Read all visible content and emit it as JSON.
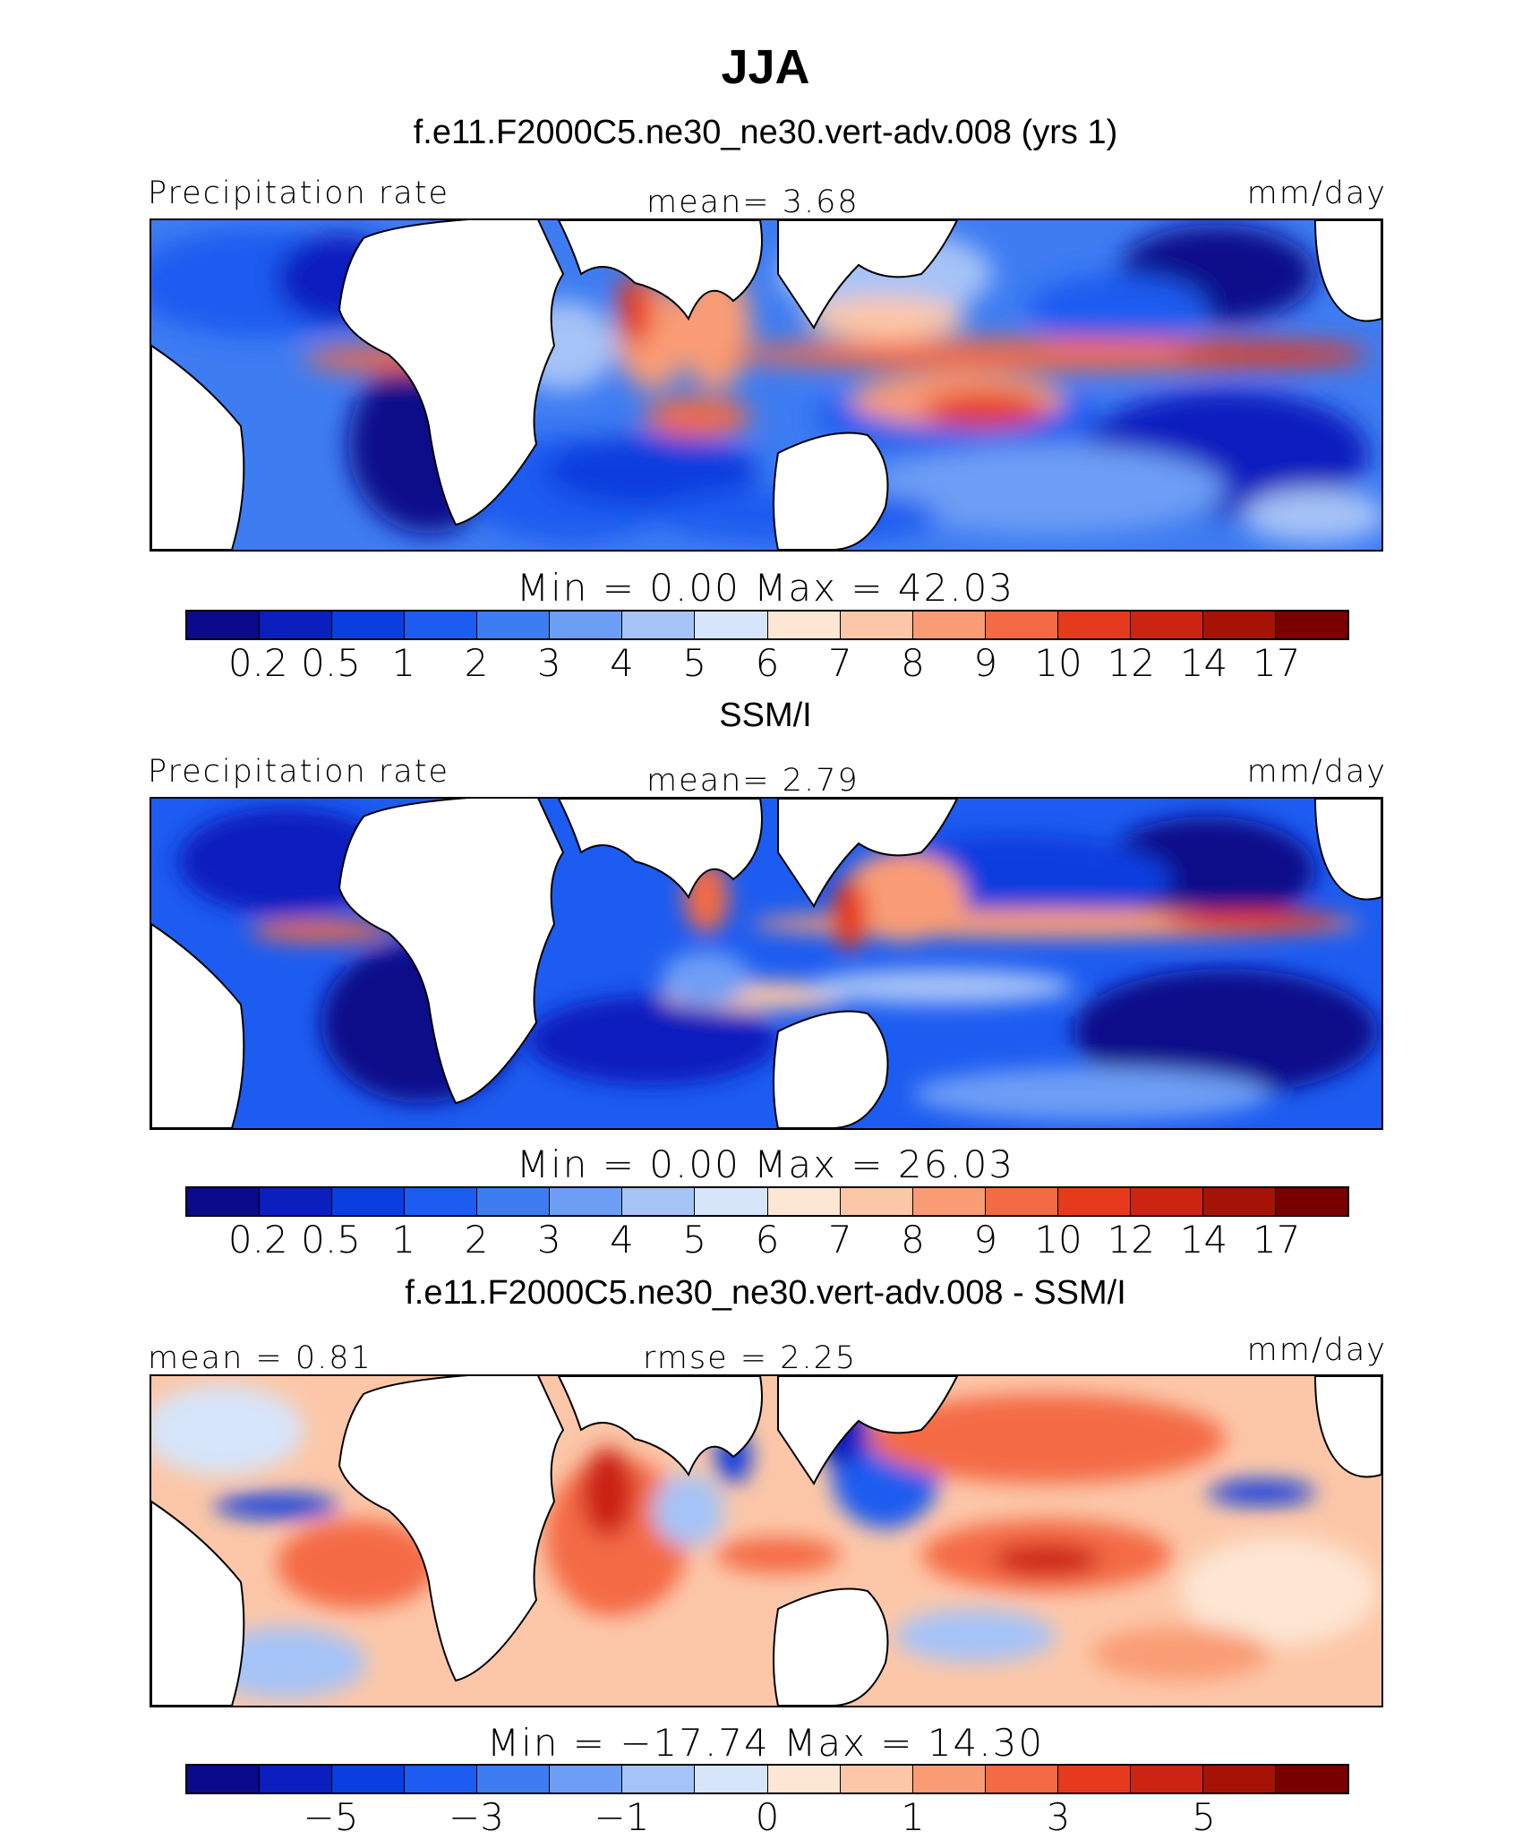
{
  "title": "JJA",
  "palette": [
    "#0a0a8a",
    "#0a1fbe",
    "#0a3ede",
    "#1d5cf0",
    "#3e7cf2",
    "#6d9ef5",
    "#a6c3f7",
    "#d6e5fa",
    "#fde6d3",
    "#fcc7a8",
    "#f99c75",
    "#f46a45",
    "#e63a1c",
    "#cc2412",
    "#a61306",
    "#7a0000"
  ],
  "panels": [
    {
      "subtitle": "f.e11.F2000C5.ne30_ne30.vert-adv.008 (yrs 1)",
      "header_left": "Precipitation rate",
      "header_center": "mean=    3.68",
      "header_right": "mm/day",
      "minmax": "Min  =     0.00  Max  =    42.03",
      "colorbar_ticks": [
        "0.2",
        "0.5",
        "1",
        "2",
        "3",
        "4",
        "5",
        "6",
        "7",
        "8",
        "9",
        "10",
        "12",
        "14",
        "17"
      ]
    },
    {
      "subtitle": "SSM/I",
      "header_left": "Precipitation rate",
      "header_center": "mean=    2.79",
      "header_right": "mm/day",
      "minmax": "Min  =     0.00  Max  =    26.03",
      "colorbar_ticks": [
        "0.2",
        "0.5",
        "1",
        "2",
        "3",
        "4",
        "5",
        "6",
        "7",
        "8",
        "9",
        "10",
        "12",
        "14",
        "17"
      ]
    },
    {
      "subtitle": "f.e11.F2000C5.ne30_ne30.vert-adv.008 - SSM/I",
      "header_left": "mean =    0.81",
      "header_center": "rmse =    2.25",
      "header_right": "mm/day",
      "minmax": "Min  = −17.74  Max  =    14.30",
      "colorbar_ticks": [
        "−5",
        "−3",
        "−1",
        "0",
        "1",
        "3",
        "5"
      ]
    }
  ],
  "chart_data": [
    {
      "type": "heatmap",
      "title": "f.e11.F2000C5.ne30_ne30.vert-adv.008 (yrs 1)",
      "variable": "Precipitation rate",
      "units": "mm/day",
      "mean": 3.68,
      "min": 0.0,
      "max": 42.03,
      "contour_levels": [
        0.2,
        0.5,
        1,
        2,
        3,
        4,
        5,
        6,
        7,
        8,
        9,
        10,
        12,
        14,
        17
      ]
    },
    {
      "type": "heatmap",
      "title": "SSM/I",
      "variable": "Precipitation rate",
      "units": "mm/day",
      "mean": 2.79,
      "min": 0.0,
      "max": 26.03,
      "contour_levels": [
        0.2,
        0.5,
        1,
        2,
        3,
        4,
        5,
        6,
        7,
        8,
        9,
        10,
        12,
        14,
        17
      ]
    },
    {
      "type": "heatmap",
      "title": "f.e11.F2000C5.ne30_ne30.vert-adv.008 - SSM/I",
      "units": "mm/day",
      "mean": 0.81,
      "rmse": 2.25,
      "min": -17.74,
      "max": 14.3,
      "colorbar_ticks": [
        -5,
        -3,
        -1,
        0,
        1,
        3,
        5
      ]
    }
  ]
}
